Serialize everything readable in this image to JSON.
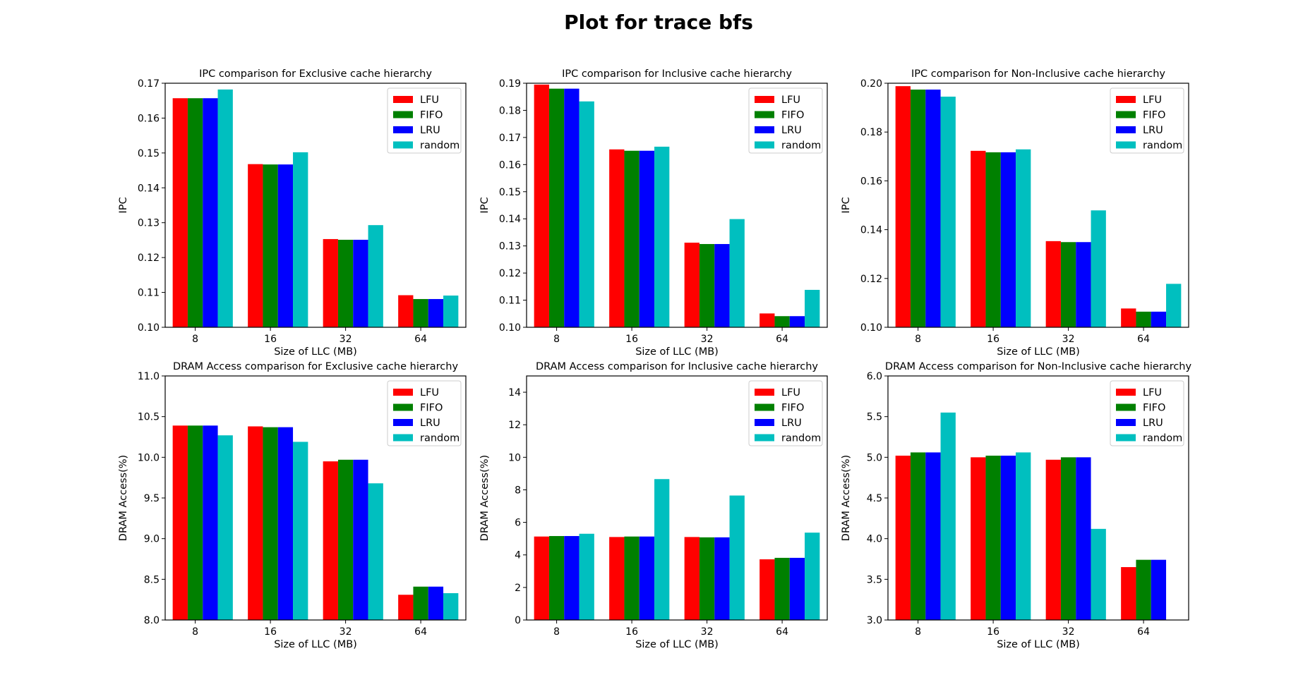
{
  "figure_title": "Plot for trace bfs",
  "colors": {
    "LFU": "#ff0000",
    "FIFO": "#008000",
    "LRU": "#0000ff",
    "random": "#00bfbf"
  },
  "chart_data": [
    {
      "type": "bar",
      "title": "IPC comparison for Exclusive cache hierarchy",
      "xlabel": "Size of LLC (MB)",
      "ylabel": "IPC",
      "categories": [
        "8",
        "16",
        "32",
        "64"
      ],
      "ylim": [
        0.1,
        0.17
      ],
      "yticks": [
        0.1,
        0.11,
        0.12,
        0.13,
        0.14,
        0.15,
        0.16,
        0.17
      ],
      "ytick_decimals": 2,
      "legend": "top-right",
      "series": [
        {
          "name": "LFU",
          "values": [
            0.1657,
            0.1468,
            0.1253,
            0.1092
          ]
        },
        {
          "name": "FIFO",
          "values": [
            0.1657,
            0.1467,
            0.1251,
            0.1081
          ]
        },
        {
          "name": "LRU",
          "values": [
            0.1657,
            0.1467,
            0.1251,
            0.1081
          ]
        },
        {
          "name": "random",
          "values": [
            0.1682,
            0.1502,
            0.1293,
            0.1091
          ]
        }
      ]
    },
    {
      "type": "bar",
      "title": "IPC comparison for Inclusive cache hierarchy",
      "xlabel": "Size of LLC (MB)",
      "ylabel": "IPC",
      "categories": [
        "8",
        "16",
        "32",
        "64"
      ],
      "ylim": [
        0.1,
        0.19
      ],
      "yticks": [
        0.1,
        0.11,
        0.12,
        0.13,
        0.14,
        0.15,
        0.16,
        0.17,
        0.18,
        0.19
      ],
      "ytick_decimals": 2,
      "legend": "top-right",
      "series": [
        {
          "name": "LFU",
          "values": [
            0.1895,
            0.1656,
            0.1312,
            0.1051
          ]
        },
        {
          "name": "FIFO",
          "values": [
            0.188,
            0.1651,
            0.1307,
            0.1041
          ]
        },
        {
          "name": "LRU",
          "values": [
            0.188,
            0.1651,
            0.1307,
            0.1041
          ]
        },
        {
          "name": "random",
          "values": [
            0.1833,
            0.1666,
            0.1399,
            0.1138
          ]
        }
      ]
    },
    {
      "type": "bar",
      "title": "IPC comparison for Non-Inclusive cache hierarchy",
      "xlabel": "Size of LLC (MB)",
      "ylabel": "IPC",
      "categories": [
        "8",
        "16",
        "32",
        "64"
      ],
      "ylim": [
        0.1,
        0.2
      ],
      "yticks": [
        0.1,
        0.12,
        0.14,
        0.16,
        0.18,
        0.2
      ],
      "ytick_decimals": 2,
      "legend": "top-right",
      "series": [
        {
          "name": "LFU",
          "values": [
            0.1988,
            0.1723,
            0.1353,
            0.1077
          ]
        },
        {
          "name": "FIFO",
          "values": [
            0.1974,
            0.1717,
            0.1349,
            0.1064
          ]
        },
        {
          "name": "LRU",
          "values": [
            0.1974,
            0.1717,
            0.1349,
            0.1064
          ]
        },
        {
          "name": "random",
          "values": [
            0.1945,
            0.1729,
            0.1479,
            0.1178
          ]
        }
      ]
    },
    {
      "type": "bar",
      "title": "DRAM Access comparison for Exclusive cache hierarchy",
      "xlabel": "Size of LLC (MB)",
      "ylabel": "DRAM Access(%)",
      "categories": [
        "8",
        "16",
        "32",
        "64"
      ],
      "ylim": [
        8.0,
        11.0
      ],
      "yticks": [
        8.0,
        8.5,
        9.0,
        9.5,
        10.0,
        10.5,
        11.0
      ],
      "ytick_decimals": 1,
      "legend": "top-right",
      "series": [
        {
          "name": "LFU",
          "values": [
            10.39,
            10.38,
            9.95,
            8.31
          ]
        },
        {
          "name": "FIFO",
          "values": [
            10.39,
            10.37,
            9.97,
            8.41
          ]
        },
        {
          "name": "LRU",
          "values": [
            10.39,
            10.37,
            9.97,
            8.41
          ]
        },
        {
          "name": "random",
          "values": [
            10.27,
            10.19,
            9.68,
            8.33
          ]
        }
      ]
    },
    {
      "type": "bar",
      "title": "DRAM Access comparison for Inclusive cache hierarchy",
      "xlabel": "Size of LLC (MB)",
      "ylabel": "DRAM Access(%)",
      "categories": [
        "8",
        "16",
        "32",
        "64"
      ],
      "ylim": [
        0,
        15
      ],
      "yticks": [
        0,
        2,
        4,
        6,
        8,
        10,
        12,
        14
      ],
      "ytick_decimals": 0,
      "legend": "top-right",
      "series": [
        {
          "name": "LFU",
          "values": [
            5.13,
            5.1,
            5.1,
            3.73
          ]
        },
        {
          "name": "FIFO",
          "values": [
            5.16,
            5.13,
            5.08,
            3.82
          ]
        },
        {
          "name": "LRU",
          "values": [
            5.16,
            5.13,
            5.08,
            3.82
          ]
        },
        {
          "name": "random",
          "values": [
            5.3,
            8.66,
            7.65,
            5.37
          ]
        }
      ]
    },
    {
      "type": "bar",
      "title": "DRAM Access comparison for Non-Inclusive cache hierarchy",
      "xlabel": "Size of LLC (MB)",
      "ylabel": "DRAM Access(%)",
      "categories": [
        "8",
        "16",
        "32",
        "64"
      ],
      "ylim": [
        3.0,
        6.0
      ],
      "yticks": [
        3.0,
        3.5,
        4.0,
        4.5,
        5.0,
        5.5,
        6.0
      ],
      "ytick_decimals": 1,
      "legend": "top-right",
      "series": [
        {
          "name": "LFU",
          "values": [
            5.02,
            5.0,
            4.97,
            3.65
          ]
        },
        {
          "name": "FIFO",
          "values": [
            5.06,
            5.02,
            5.0,
            3.74
          ]
        },
        {
          "name": "LRU",
          "values": [
            5.06,
            5.02,
            5.0,
            3.74
          ]
        },
        {
          "name": "random",
          "values": [
            5.55,
            5.06,
            4.12,
            3.0
          ]
        }
      ]
    }
  ]
}
